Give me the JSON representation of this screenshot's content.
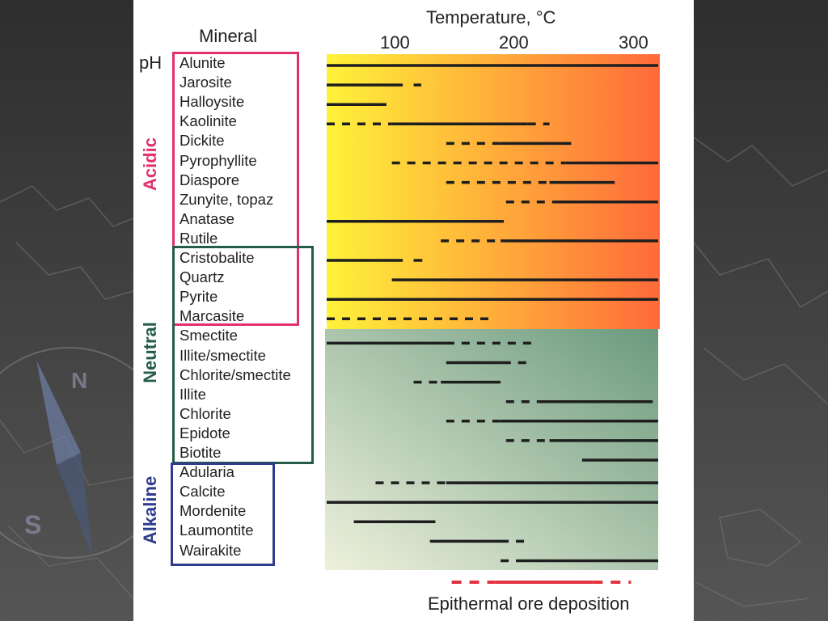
{
  "header": {
    "mineral_label": "Mineral",
    "temperature_label": "Temperature, °C",
    "ph_label": "pH"
  },
  "axis_ticks": [
    "100",
    "200",
    "300"
  ],
  "groups": {
    "acidic": {
      "label": "Acidic",
      "color": "#e0316a"
    },
    "neutral": {
      "label": "Neutral",
      "color": "#245c45"
    },
    "alkaline": {
      "label": "Alkaline",
      "color": "#2f3b8c"
    }
  },
  "ore_label": "Epithermal ore deposition",
  "colors": {
    "acid_low_temp": "#fff23a",
    "acid_high_temp": "#ff6a3a",
    "alkaline_low_temp": "#eef1dc",
    "neutral_high_temp": "#6b9a7e",
    "ore_bar": "#e33340",
    "bar": "#1e1e1e"
  },
  "chart_data": {
    "type": "range",
    "xlabel": "Temperature, °C",
    "xlim": [
      20,
      325
    ],
    "ticks": [
      100,
      200,
      300
    ],
    "acid_neutral_split_after": "Marcasite",
    "rows": [
      {
        "mineral": "Alunite",
        "segments": [
          {
            "from": 20,
            "to": 325,
            "style": "solid"
          }
        ]
      },
      {
        "mineral": "Jarosite",
        "segments": [
          {
            "from": 20,
            "to": 90,
            "style": "solid"
          },
          {
            "from": 100,
            "to": 107,
            "style": "solid"
          }
        ]
      },
      {
        "mineral": "Halloysite",
        "segments": [
          {
            "from": 20,
            "to": 75,
            "style": "solid"
          }
        ]
      },
      {
        "mineral": "Kaolinite",
        "segments": [
          {
            "from": 20,
            "to": 80,
            "style": "dashed"
          },
          {
            "from": 80,
            "to": 205,
            "style": "solid"
          },
          {
            "from": 205,
            "to": 225,
            "style": "dashed"
          }
        ]
      },
      {
        "mineral": "Dickite",
        "segments": [
          {
            "from": 130,
            "to": 180,
            "style": "dashed"
          },
          {
            "from": 180,
            "to": 245,
            "style": "solid"
          }
        ]
      },
      {
        "mineral": "Pyrophyllite",
        "segments": [
          {
            "from": 80,
            "to": 240,
            "style": "dashed"
          },
          {
            "from": 240,
            "to": 325,
            "style": "solid"
          }
        ]
      },
      {
        "mineral": "Diaspore",
        "segments": [
          {
            "from": 130,
            "to": 225,
            "style": "dashed"
          },
          {
            "from": 225,
            "to": 285,
            "style": "solid"
          }
        ]
      },
      {
        "mineral": "Zunyite, topaz",
        "segments": [
          {
            "from": 185,
            "to": 230,
            "style": "dashed"
          },
          {
            "from": 230,
            "to": 325,
            "style": "solid"
          }
        ]
      },
      {
        "mineral": "Anatase",
        "segments": [
          {
            "from": 20,
            "to": 183,
            "style": "solid"
          }
        ]
      },
      {
        "mineral": "Rutile",
        "segments": [
          {
            "from": 125,
            "to": 180,
            "style": "dashed"
          },
          {
            "from": 180,
            "to": 325,
            "style": "solid"
          }
        ]
      },
      {
        "mineral": "Cristobalite",
        "segments": [
          {
            "from": 20,
            "to": 90,
            "style": "solid"
          },
          {
            "from": 100,
            "to": 108,
            "style": "solid"
          }
        ]
      },
      {
        "mineral": "Quartz",
        "segments": [
          {
            "from": 80,
            "to": 325,
            "style": "solid"
          }
        ]
      },
      {
        "mineral": "Pyrite",
        "segments": [
          {
            "from": 20,
            "to": 325,
            "style": "solid"
          }
        ]
      },
      {
        "mineral": "Marcasite",
        "segments": [
          {
            "from": 20,
            "to": 175,
            "style": "dashed"
          }
        ]
      },
      {
        "mineral": "Smectite",
        "segments": [
          {
            "from": 20,
            "to": 130,
            "style": "solid"
          },
          {
            "from": 130,
            "to": 210,
            "style": "dashed"
          }
        ]
      },
      {
        "mineral": "Illite/smectite",
        "segments": [
          {
            "from": 130,
            "to": 182,
            "style": "solid"
          },
          {
            "from": 182,
            "to": 210,
            "style": "dashed"
          }
        ]
      },
      {
        "mineral": "Chlorite/smectite",
        "segments": [
          {
            "from": 100,
            "to": 125,
            "style": "dashed"
          },
          {
            "from": 125,
            "to": 180,
            "style": "solid"
          }
        ]
      },
      {
        "mineral": "Illite",
        "segments": [
          {
            "from": 185,
            "to": 215,
            "style": "dashed"
          },
          {
            "from": 215,
            "to": 320,
            "style": "solid"
          }
        ]
      },
      {
        "mineral": "Chlorite",
        "segments": [
          {
            "from": 130,
            "to": 180,
            "style": "dashed"
          },
          {
            "from": 180,
            "to": 325,
            "style": "solid"
          }
        ]
      },
      {
        "mineral": "Epidote",
        "segments": [
          {
            "from": 185,
            "to": 225,
            "style": "dashed"
          },
          {
            "from": 225,
            "to": 325,
            "style": "solid"
          }
        ]
      },
      {
        "mineral": "Biotite",
        "segments": [
          {
            "from": 255,
            "to": 325,
            "style": "solid"
          }
        ]
      },
      {
        "mineral": "Adularia",
        "segments": [
          {
            "from": 65,
            "to": 130,
            "style": "dashed"
          },
          {
            "from": 130,
            "to": 325,
            "style": "solid"
          }
        ]
      },
      {
        "mineral": "Calcite",
        "segments": [
          {
            "from": 20,
            "to": 325,
            "style": "solid"
          }
        ]
      },
      {
        "mineral": "Mordenite",
        "segments": [
          {
            "from": 45,
            "to": 120,
            "style": "solid"
          }
        ]
      },
      {
        "mineral": "Laumontite",
        "segments": [
          {
            "from": 115,
            "to": 180,
            "style": "solid"
          },
          {
            "from": 180,
            "to": 205,
            "style": "dashed"
          }
        ]
      },
      {
        "mineral": "Wairakite",
        "segments": [
          {
            "from": 180,
            "to": 200,
            "style": "dashed"
          },
          {
            "from": 200,
            "to": 325,
            "style": "solid"
          }
        ]
      }
    ],
    "ore_deposition": [
      {
        "from": 135,
        "to": 175,
        "style": "dashed"
      },
      {
        "from": 175,
        "to": 265,
        "style": "solid"
      },
      {
        "from": 265,
        "to": 300,
        "style": "dashed"
      }
    ]
  }
}
